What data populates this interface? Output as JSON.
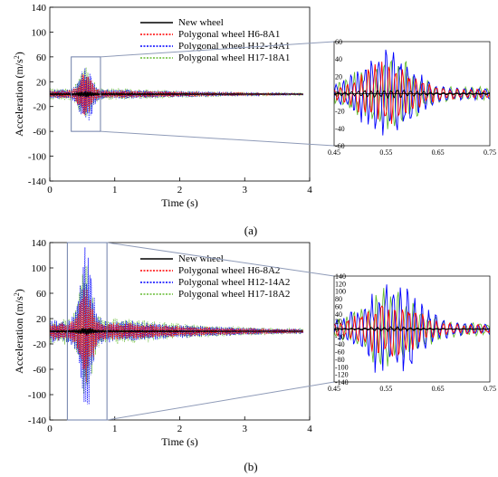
{
  "chart_data": [
    {
      "panel_label": "(a)",
      "type": "line",
      "main": {
        "xlabel": "Time (s)",
        "ylabel": "Acceleration (m/s",
        "ylabel_sup": "2",
        "ylabel_close": ")",
        "xlim": [
          0,
          4
        ],
        "ylim": [
          -140,
          140
        ],
        "xticks": [
          "0",
          "1",
          "2",
          "3",
          "4"
        ],
        "yticks": [
          "140",
          "100",
          "60",
          "20",
          "-20",
          "-60",
          "-100",
          "-140"
        ],
        "ytick_values": [
          140,
          100,
          60,
          20,
          -20,
          -60,
          -100,
          -140
        ],
        "zoom_box": {
          "x": [
            0.33,
            0.78
          ],
          "y": [
            -60,
            60
          ]
        },
        "peak": {
          "t": 0.55,
          "width": 0.12,
          "base": 8,
          "peak_h12": 48,
          "peak_h6": 32,
          "peak_h17": 40,
          "peak_new": 4
        }
      },
      "inset": {
        "xlim": [
          0.45,
          0.75
        ],
        "ylim": [
          -60,
          60
        ],
        "xticks": [
          "0.45",
          "0.55",
          "0.65",
          "0.75"
        ],
        "yticks": [
          "60",
          "40",
          "20",
          "0",
          "-20",
          "-40",
          "-60"
        ],
        "ytick_values": [
          60,
          40,
          20,
          0,
          -20,
          -40,
          -60
        ]
      },
      "series": [
        {
          "name": "New wheel",
          "color": "#000000",
          "dash": "solid"
        },
        {
          "name": "Polygonal wheel H6-8A1",
          "color": "#ff0000",
          "dash": "dotted"
        },
        {
          "name": "Polygonal wheel H12-14A1",
          "color": "#0000ff",
          "dash": "dotted"
        },
        {
          "name": "Polygonal wheel H17-18A1",
          "color": "#66bb33",
          "dash": "dotted"
        }
      ]
    },
    {
      "panel_label": "(b)",
      "type": "line",
      "main": {
        "xlabel": "Time (s)",
        "ylabel": "Acceleration (m/s",
        "ylabel_sup": "2",
        "ylabel_close": ")",
        "xlim": [
          0,
          4
        ],
        "ylim": [
          -140,
          140
        ],
        "xticks": [
          "0",
          "1",
          "2",
          "3",
          "4"
        ],
        "yticks": [
          "140",
          "100",
          "60",
          "20",
          "-20",
          "-60",
          "-100",
          "-140"
        ],
        "ytick_values": [
          140,
          100,
          60,
          20,
          -20,
          -60,
          -100,
          -140
        ],
        "zoom_box": {
          "x": [
            0.27,
            0.88
          ],
          "y": [
            -140,
            140
          ]
        },
        "peak": {
          "t": 0.56,
          "width": 0.12,
          "base": 18,
          "peak_h12": 128,
          "peak_h6": 70,
          "peak_h17": 95,
          "peak_new": 5
        }
      },
      "inset": {
        "xlim": [
          0.45,
          0.75
        ],
        "ylim": [
          -140,
          140
        ],
        "xticks": [
          "0.45",
          "0.55",
          "0.65",
          "0.75"
        ],
        "yticks": [
          "140",
          "120",
          "100",
          "80",
          "60",
          "40",
          "20",
          "0",
          "-20",
          "-40",
          "-60",
          "-80",
          "-100",
          "-120",
          "-140"
        ],
        "ytick_values": [
          140,
          120,
          100,
          80,
          60,
          40,
          20,
          0,
          -20,
          -40,
          -60,
          -80,
          -100,
          -120,
          -140
        ]
      },
      "series": [
        {
          "name": "New wheel",
          "color": "#000000",
          "dash": "solid"
        },
        {
          "name": "Polygonal wheel H6-8A2",
          "color": "#ff0000",
          "dash": "dotted"
        },
        {
          "name": "Polygonal wheel H12-14A2",
          "color": "#0000ff",
          "dash": "dotted"
        },
        {
          "name": "Polygonal wheel H17-18A2",
          "color": "#66bb33",
          "dash": "dotted"
        }
      ]
    }
  ]
}
